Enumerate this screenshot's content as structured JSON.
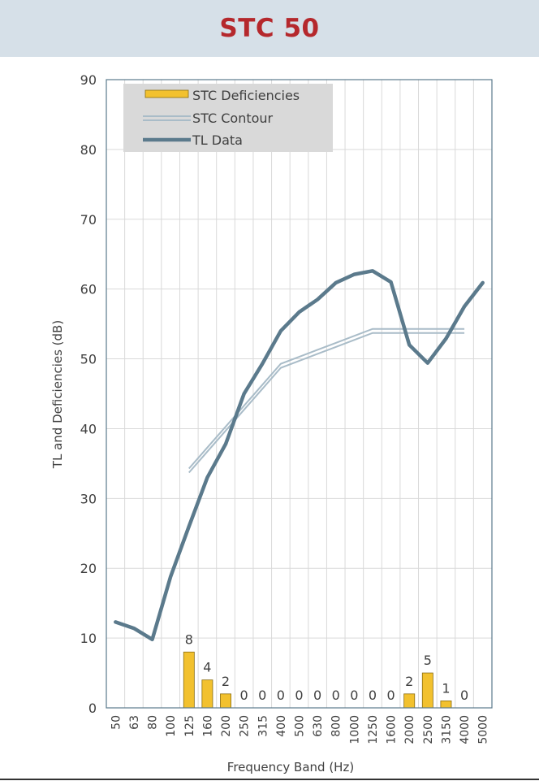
{
  "page": {
    "title": "STC 50"
  },
  "colors": {
    "title": "#b5282c",
    "header_bg": "#d6e0e8",
    "tl": "#5b7a8c",
    "contour": "#a9bcc8",
    "bars": "#f2c12e",
    "bar_stroke": "#8a6d10"
  },
  "chart_data": {
    "type": "bar",
    "xlabel": "Frequency Band (Hz)",
    "ylabel": "TL and Deficiencies (dB)",
    "ylim": [
      0,
      90
    ],
    "yticks": [
      "0",
      "10",
      "20",
      "30",
      "40",
      "50",
      "60",
      "70",
      "80",
      "90"
    ],
    "categories": [
      "50",
      "63",
      "80",
      "100",
      "125",
      "160",
      "200",
      "250",
      "315",
      "400",
      "500",
      "630",
      "800",
      "1000",
      "1250",
      "1600",
      "2000",
      "2500",
      "3150",
      "4000",
      "5000"
    ],
    "grid": true,
    "legend_position": "top-left",
    "legend": [
      "STC Deficiencies",
      "STC Contour",
      "TL Data"
    ],
    "series": [
      {
        "name": "STC Deficiencies",
        "type": "bar",
        "values": [
          null,
          null,
          null,
          null,
          8,
          4,
          2,
          0,
          0,
          0,
          0,
          0,
          0,
          0,
          0,
          0,
          2,
          5,
          1,
          0,
          null
        ]
      },
      {
        "name": "STC Contour",
        "type": "line",
        "values": [
          null,
          null,
          null,
          null,
          34,
          37,
          40,
          43,
          46,
          49,
          50,
          51,
          52,
          53,
          54,
          54,
          54,
          54,
          54,
          54,
          null
        ]
      },
      {
        "name": "TL Data",
        "type": "line",
        "values": [
          12.3,
          11.4,
          9.8,
          18.8,
          26,
          33,
          37.8,
          45,
          49.3,
          54,
          56.7,
          58.5,
          60.9,
          62.1,
          62.6,
          61,
          52,
          49.4,
          52.9,
          57.5,
          60.9
        ]
      }
    ]
  }
}
